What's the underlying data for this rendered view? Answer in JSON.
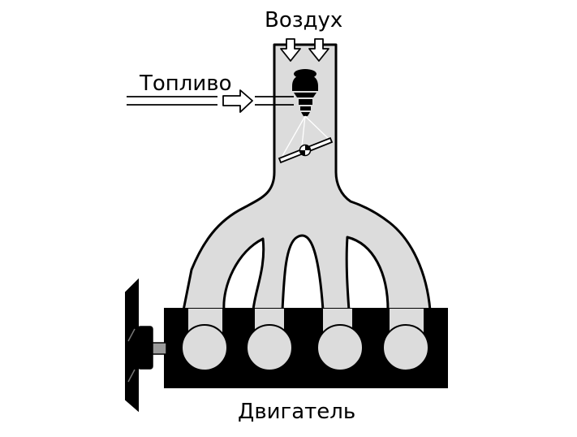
{
  "labels": {
    "air": "Воздух",
    "fuel": "Топливо",
    "engine": "Двигатель"
  },
  "colors": {
    "manifold_fill": "#dcdcdc",
    "engine_block": "#000000",
    "cylinder_fill": "#dcdcdc",
    "outline": "#000000",
    "arrow_fill": "#ffffff"
  },
  "cylinders": 4,
  "icons": [
    "air-inlet-arrow",
    "fuel-arrow",
    "fuel-injector",
    "throttle-valve",
    "flywheel"
  ]
}
